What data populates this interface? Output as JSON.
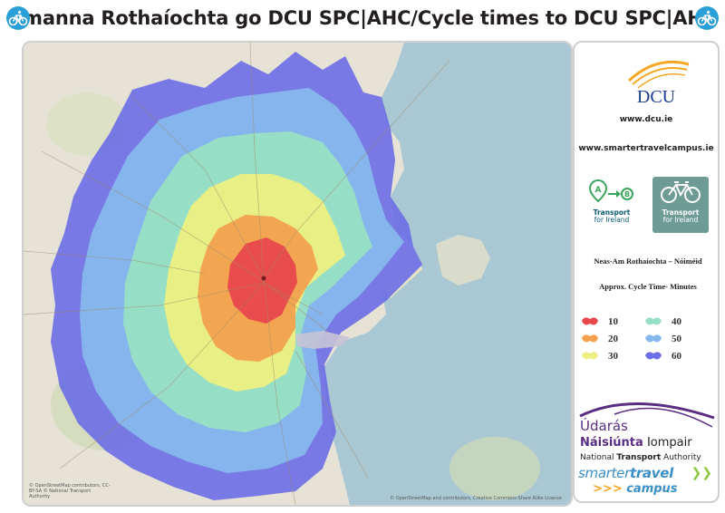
{
  "header": {
    "title": "Amanna Rothaíochta go DCU SPC|AHC/Cycle times to DCU SPC|AHC",
    "left_icon": "cyclist-icon",
    "right_icon": "cyclist-icon"
  },
  "map": {
    "attribution_left": "© OpenStreetMap contributors, CC-BY-SA © National Transport Authority",
    "attribution_right": "© OpenStreetMap and contributors, Creative Commons-Share Alike License",
    "band_colors": {
      "10": "#e8474c",
      "20": "#f3a14f",
      "30": "#ecef82",
      "40": "#98e0c5",
      "50": "#86b8ec",
      "60": "#6b6ee6"
    }
  },
  "panel": {
    "dcu_logo_text": "DCU",
    "url_dcu": "www.dcu.ie",
    "url_stc": "www.smartertravelcampus.ie",
    "tfi_journey": {
      "line1": "Transport",
      "line2": "for Ireland"
    },
    "tfi_cycle": {
      "line1": "Transport",
      "line2": "for Ireland"
    },
    "legend_title": "Neas-Am Rothaíochta – Nóiméid",
    "legend_subtitle": "Approx. Cycle Time- Minutes",
    "legend": [
      {
        "label": "10",
        "color": "#e8474c"
      },
      {
        "label": "20",
        "color": "#f3a14f"
      },
      {
        "label": "30",
        "color": "#ecef82"
      },
      {
        "label": "40",
        "color": "#98e0c5"
      },
      {
        "label": "50",
        "color": "#86b8ec"
      },
      {
        "label": "60",
        "color": "#6b6ee6"
      }
    ],
    "nta_line1": "Údarás",
    "nta_line2_bold": "Náisiúnta",
    "nta_line2_rest": " Iompair",
    "nta_line3_a": "National ",
    "nta_line3_bold": "Transport",
    "nta_line3_b": " Authority",
    "stc_line1_a": "smarter",
    "stc_line1_b": "travel",
    "stc_line2": "campus",
    "stc_arrows": ">>>"
  }
}
